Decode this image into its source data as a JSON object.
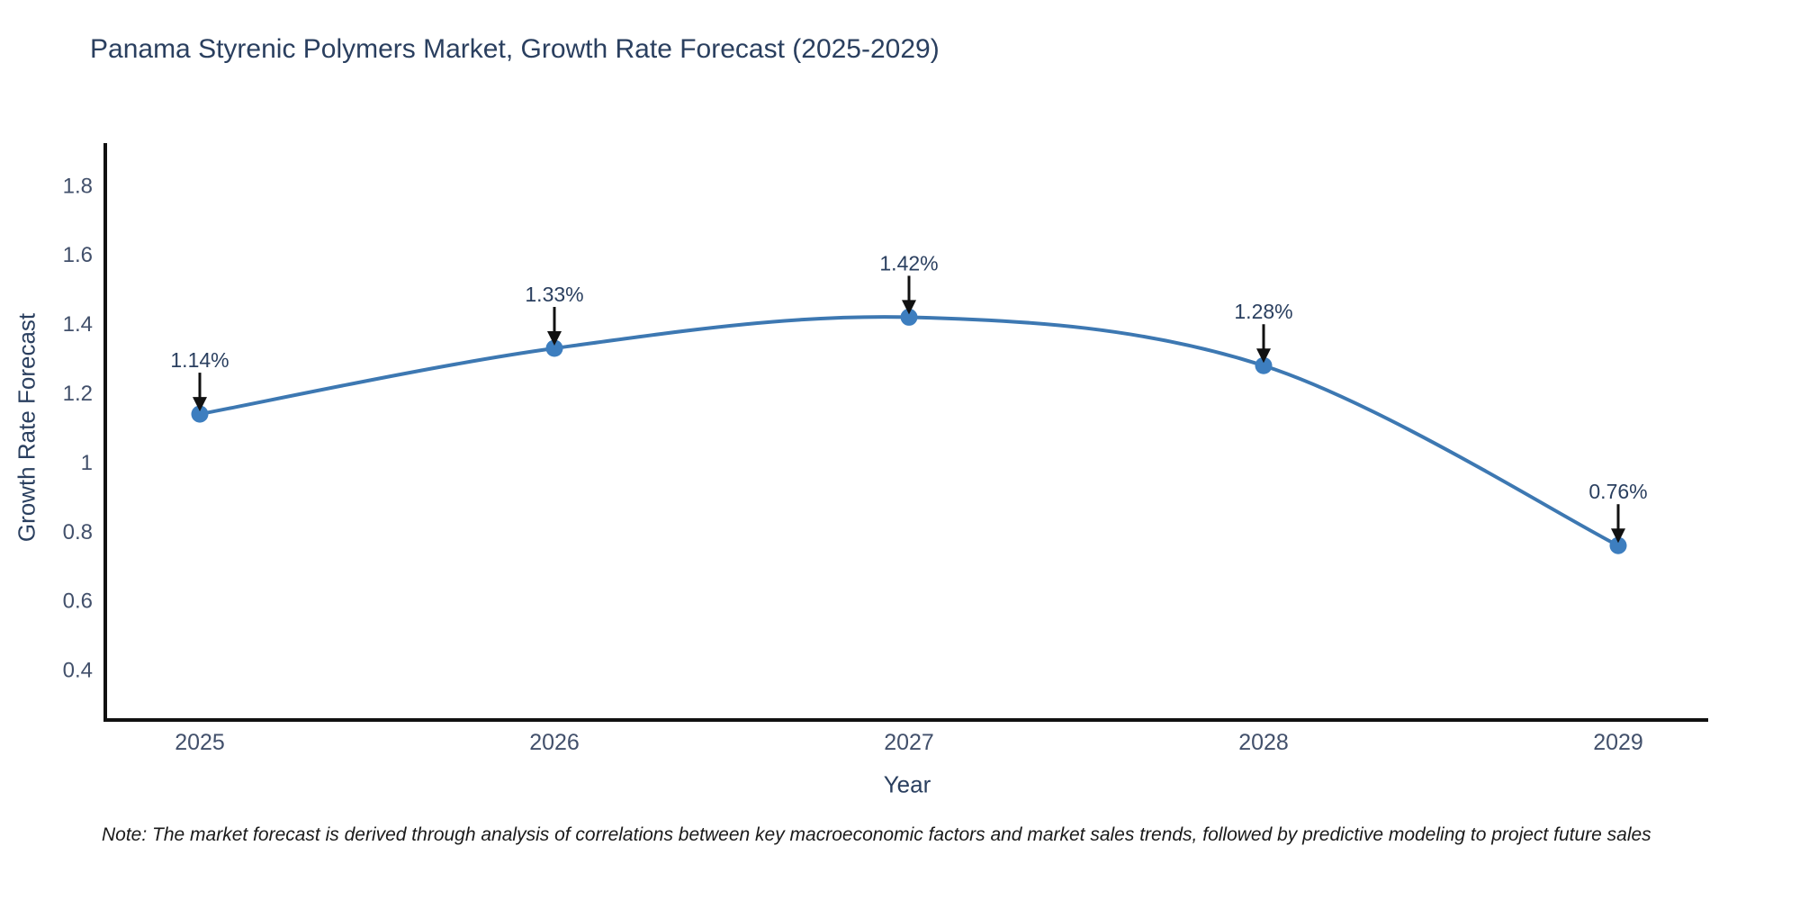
{
  "page": {
    "background": "#ffffff"
  },
  "chart_data": {
    "type": "line",
    "title": "Panama Styrenic Polymers Market, Growth Rate Forecast (2025-2029)",
    "xlabel": "Year",
    "ylabel": "Growth Rate Forecast",
    "categories": [
      "2025",
      "2026",
      "2027",
      "2028",
      "2029"
    ],
    "values": [
      1.14,
      1.33,
      1.42,
      1.28,
      0.76
    ],
    "point_labels": [
      "1.14%",
      "1.33%",
      "1.42%",
      "1.28%",
      "0.76%"
    ],
    "ytick_labels": [
      "1.8",
      "1.6",
      "1.4",
      "1.2",
      "1",
      "0.8",
      "0.6",
      "0.4"
    ],
    "ytick_values": [
      1.8,
      1.6,
      1.4,
      1.2,
      1,
      0.8,
      0.6,
      0.4
    ],
    "ylim": [
      0.256,
      1.923
    ],
    "grid": false,
    "legend": "none",
    "smoothing": "spline",
    "annotations": "value labels with down arrows above each point",
    "line_color": "#3d78b2",
    "marker_color": "#3d7ebf",
    "axis_color": "#111111",
    "tick_color": "#42506b",
    "title_color": "#2a3f5f",
    "arrow_color": "#111111"
  },
  "note": {
    "text": "Note: The market forecast is derived through analysis of correlations between key macroeconomic factors and market sales trends, followed by predictive modeling to project future sales"
  }
}
